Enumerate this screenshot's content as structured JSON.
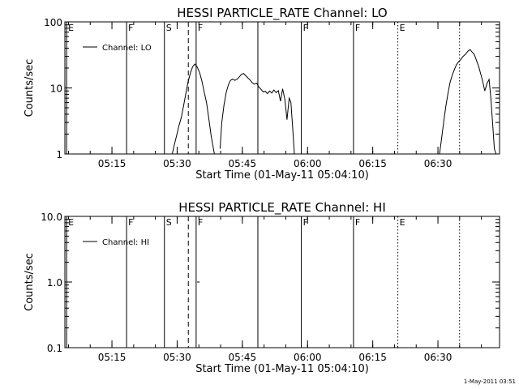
{
  "chart_data": [
    {
      "type": "line",
      "title": "HESSI PARTICLE_RATE Channel: LO",
      "xlabel": "Start Time (01-May-11 05:04:10)",
      "ylabel": "Counts/sec",
      "yscale": "log",
      "ylim": [
        1,
        100
      ],
      "y_ticks": [
        1,
        10,
        100
      ],
      "y_tick_labels": [
        "1",
        "10",
        "100"
      ],
      "x_unit": "minutes after 05:04:10",
      "xlim": [
        0,
        100
      ],
      "x_ticks": [
        10.83,
        25.83,
        40.83,
        55.83,
        70.83,
        85.83
      ],
      "x_tick_labels": [
        "05:15",
        "05:30",
        "05:45",
        "06:00",
        "06:15",
        "06:30"
      ],
      "legend": "Channel: LO",
      "legend_position": "top-left",
      "series": [
        {
          "name": "Channel: LO",
          "segments": [
            [
              [
                24.7,
                1
              ],
              [
                25.2,
                1.4
              ],
              [
                25.7,
                1.9
              ],
              [
                26.2,
                2.6
              ],
              [
                26.8,
                3.6
              ],
              [
                27.3,
                5.3
              ],
              [
                27.8,
                8
              ],
              [
                28.3,
                12
              ],
              [
                28.9,
                17
              ],
              [
                29.4,
                21
              ],
              [
                29.9,
                23
              ],
              [
                30.4,
                21
              ],
              [
                31,
                17
              ],
              [
                31.5,
                13
              ],
              [
                32,
                9
              ],
              [
                32.6,
                6
              ],
              [
                33.1,
                3.5
              ],
              [
                33.7,
                1.8
              ],
              [
                34.4,
                1
              ]
            ],
            [
              [
                35.7,
                1.2
              ],
              [
                36.1,
                3
              ],
              [
                36.6,
                5.5
              ],
              [
                37.1,
                8.5
              ],
              [
                37.6,
                11
              ],
              [
                38.1,
                13
              ],
              [
                38.6,
                13.6
              ],
              [
                39.1,
                13
              ],
              [
                39.6,
                13.5
              ],
              [
                40.1,
                14.6
              ],
              [
                40.6,
                16
              ],
              [
                41.1,
                16.6
              ],
              [
                41.6,
                15.3
              ],
              [
                42.1,
                14.2
              ],
              [
                42.6,
                13.2
              ],
              [
                43.1,
                12
              ],
              [
                43.6,
                11.4
              ],
              [
                44.1,
                11.8
              ],
              [
                44.6,
                10.4
              ],
              [
                45.1,
                9.6
              ],
              [
                45.6,
                8.7
              ],
              [
                46.1,
                8.9
              ],
              [
                46.6,
                8.2
              ],
              [
                47.1,
                9
              ],
              [
                47.6,
                8.4
              ],
              [
                48.1,
                9.3
              ],
              [
                48.6,
                8.5
              ],
              [
                49.1,
                9.1
              ],
              [
                49.6,
                6.3
              ],
              [
                50.1,
                9.7
              ],
              [
                50.6,
                6.8
              ],
              [
                51.1,
                3.3
              ],
              [
                51.6,
                7
              ],
              [
                52,
                6.1
              ],
              [
                52.4,
                2.5
              ],
              [
                52.8,
                1
              ]
            ],
            [
              [
                86.2,
                1
              ],
              [
                86.6,
                1.6
              ],
              [
                87.1,
                2.9
              ],
              [
                87.6,
                5
              ],
              [
                88.1,
                8
              ],
              [
                88.6,
                12
              ],
              [
                89.1,
                15.5
              ],
              [
                89.6,
                19
              ],
              [
                90.1,
                22.5
              ],
              [
                90.6,
                25
              ],
              [
                91.1,
                27
              ],
              [
                91.6,
                30
              ],
              [
                92.1,
                32
              ],
              [
                92.7,
                36
              ],
              [
                93.2,
                38
              ],
              [
                93.7,
                35
              ],
              [
                94.2,
                32
              ],
              [
                94.7,
                26
              ],
              [
                95.2,
                21
              ],
              [
                95.7,
                16
              ],
              [
                96.2,
                12
              ],
              [
                96.6,
                9
              ],
              [
                97.1,
                11.6
              ],
              [
                97.6,
                13.5
              ],
              [
                98,
                7
              ],
              [
                98.4,
                3
              ],
              [
                98.8,
                1.2
              ],
              [
                99.2,
                1
              ]
            ]
          ]
        }
      ]
    },
    {
      "type": "line",
      "title": "HESSI PARTICLE_RATE Channel: HI",
      "xlabel": "Start Time (01-May-11 05:04:10)",
      "ylabel": "Counts/sec",
      "yscale": "log",
      "ylim": [
        0.1,
        10
      ],
      "y_ticks": [
        0.1,
        1,
        10
      ],
      "y_tick_labels": [
        "0.1",
        "1.0",
        "10.0"
      ],
      "x_unit": "minutes after 05:04:10",
      "xlim": [
        0,
        100
      ],
      "x_ticks": [
        10.83,
        25.83,
        40.83,
        55.83,
        70.83,
        85.83
      ],
      "x_tick_labels": [
        "05:15",
        "05:30",
        "05:45",
        "06:00",
        "06:15",
        "06:30"
      ],
      "legend": "Channel: HI",
      "legend_position": "top-left",
      "series": [
        {
          "name": "Channel: HI",
          "segments": [
            [
              [
                30.4,
                1
              ],
              [
                31,
                1
              ]
            ]
          ]
        }
      ]
    }
  ],
  "flags": [
    {
      "label": "E",
      "x": 0.4,
      "style": "solid"
    },
    {
      "label": "F",
      "x": 14.2,
      "style": "solid"
    },
    {
      "label": "S",
      "x": 22.9,
      "style": "solid"
    },
    {
      "label": "",
      "x": 28.4,
      "style": "dashed"
    },
    {
      "label": "F",
      "x": 30.2,
      "style": "solid"
    },
    {
      "label": "",
      "x": 44.4,
      "style": "solid"
    },
    {
      "label": "F",
      "x": 54.4,
      "style": "solid"
    },
    {
      "label": "F",
      "x": 66.4,
      "style": "solid"
    },
    {
      "label": "E",
      "x": 76.6,
      "style": "dotted"
    },
    {
      "label": "",
      "x": 90.8,
      "style": "dotted"
    }
  ],
  "timestamp": "1-May-2011 03:51"
}
